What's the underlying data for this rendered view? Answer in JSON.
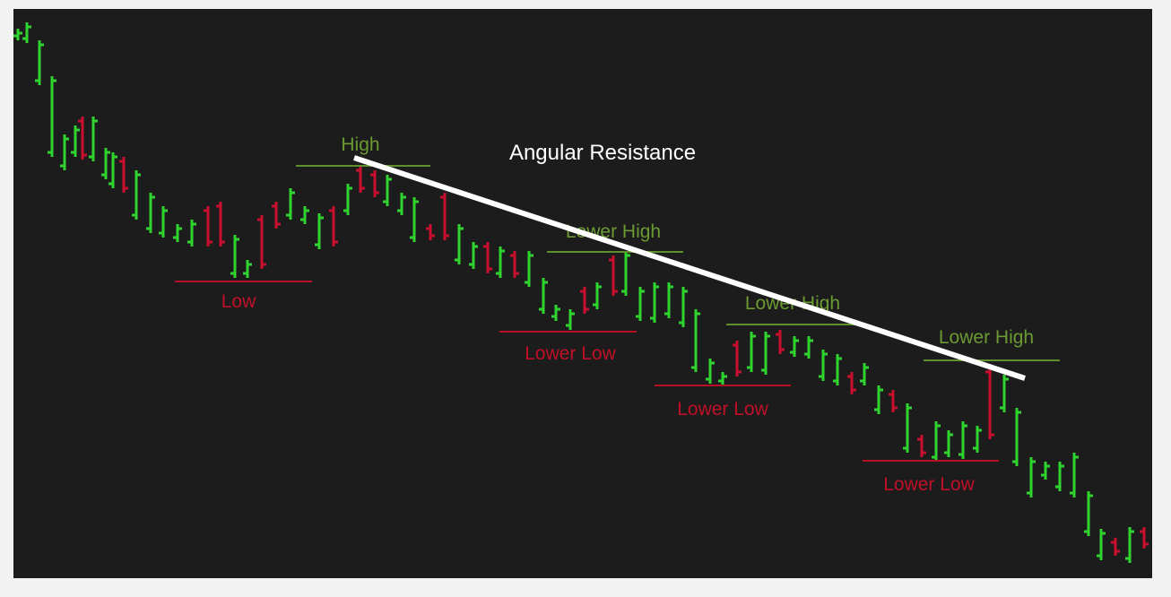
{
  "annotation": "Angular Resistance",
  "levels": [
    "High",
    "Low",
    "Lower High",
    "Lower Low",
    "Lower High",
    "Lower Low",
    "Lower High",
    "Lower Low"
  ]
}
